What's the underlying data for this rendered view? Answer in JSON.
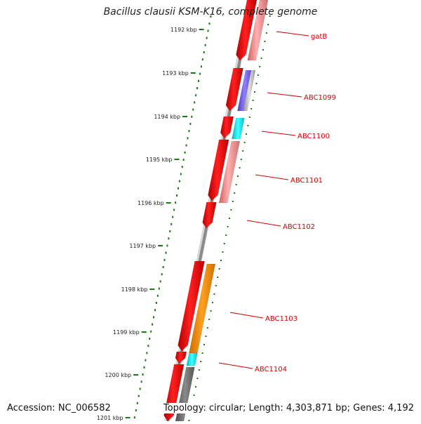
{
  "title": "Bacillus clausii KSM-K16, complete genome",
  "accession_text": "Accession: NC_006582",
  "topology_text": "Topology: circular; Length: 4,303,871 bp; Genes: 4,192",
  "ticks": [
    {
      "label": "1192 kbp"
    },
    {
      "label": "1193 kbp"
    },
    {
      "label": "1194 kbp"
    },
    {
      "label": "1195 kbp"
    },
    {
      "label": "1196 kbp"
    },
    {
      "label": "1197 kbp"
    },
    {
      "label": "1198 kbp"
    },
    {
      "label": "1199 kbp"
    },
    {
      "label": "1200 kbp"
    },
    {
      "label": "1201 kbp"
    }
  ],
  "gene_labels": [
    {
      "label": "gatB"
    },
    {
      "label": "ABC1099"
    },
    {
      "label": "ABC1100"
    },
    {
      "label": "ABC1101"
    },
    {
      "label": "ABC1102"
    },
    {
      "label": "ABC1103"
    },
    {
      "label": "ABC1104"
    }
  ],
  "colors": {
    "backbone": "#8a8a8a",
    "gene": "#ff0000",
    "cds_pink": "#f08080",
    "cds_purple": "#7b68ee",
    "cds_cyan": "#00e5ee",
    "cds_orange": "#ff8c00",
    "cds_gray": "#707070",
    "tick": "#1a7a1a",
    "label": "#cc0000"
  }
}
